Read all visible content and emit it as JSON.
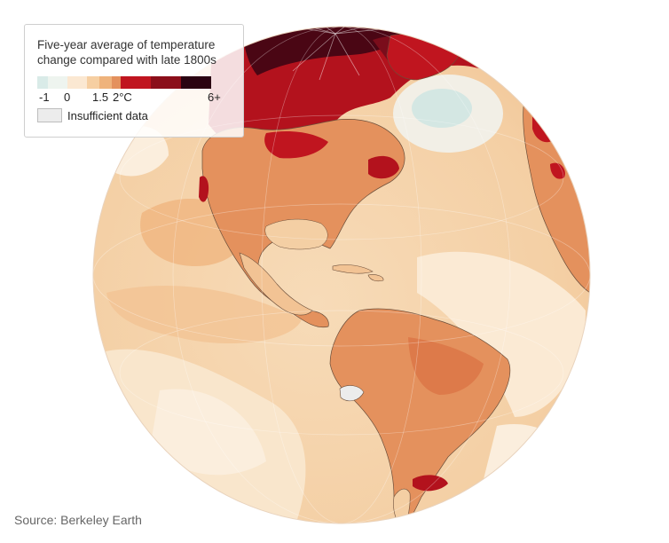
{
  "legend": {
    "title_line1": "Five-year average of temperature",
    "title_line2": "change compared with late 1800s",
    "scale_labels": {
      "minus1": "-1",
      "zero": "0",
      "one_five": "1.5",
      "two": "2°C",
      "six": "6+"
    },
    "scale_colors": [
      "#d9ebe8",
      "#eef4ef",
      "#fbe8d2",
      "#f6cfa2",
      "#efb37c",
      "#e4915d",
      "#c0151f",
      "#8b0e1a",
      "#2a0312"
    ],
    "nodata_label": "Insufficient data",
    "nodata_color": "#ececec"
  },
  "map": {
    "ocean_base_color": "#f5d2aa",
    "land_outline_color": "#6b4e3a",
    "continents": [
      "North America",
      "South America",
      "Greenland",
      "Europe",
      "Africa"
    ]
  },
  "source": "Source: Berkeley Earth"
}
